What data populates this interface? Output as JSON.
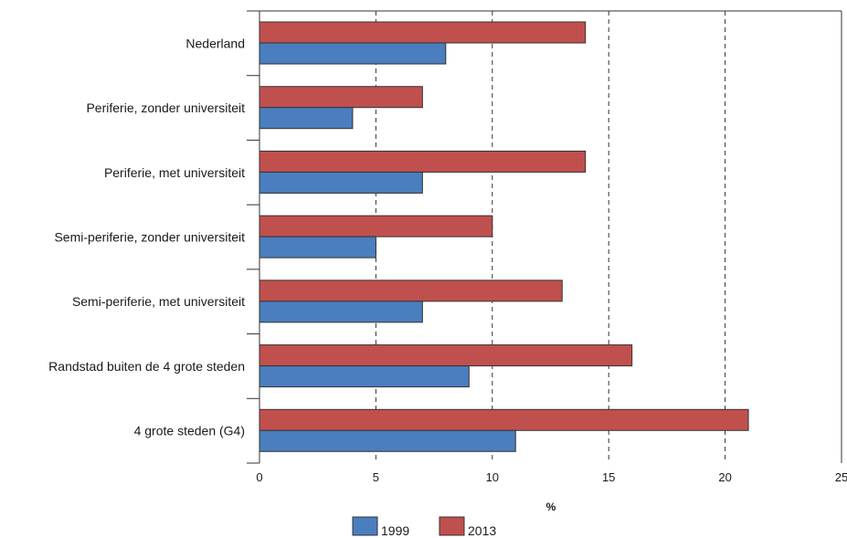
{
  "chart_data": {
    "type": "bar",
    "orientation": "horizontal",
    "categories": [
      "Nederland",
      "Periferie, zonder universiteit",
      "Periferie, met universiteit",
      "Semi-periferie, zonder universiteit",
      "Semi-periferie, met universiteit",
      "Randstad buiten de 4 grote steden",
      "4 grote steden (G4)"
    ],
    "series": [
      {
        "name": "2013",
        "color": "#c0504d",
        "values": [
          14,
          7,
          14,
          10,
          13,
          16,
          21
        ]
      },
      {
        "name": "1999",
        "color": "#4a7ebf",
        "values": [
          8,
          4,
          7,
          5,
          7,
          9,
          11
        ]
      }
    ],
    "xlabel": "%",
    "xlim": [
      0,
      25
    ],
    "xticks": [
      0,
      5,
      10,
      15,
      20,
      25
    ],
    "grid": "vertical dashed",
    "legend": {
      "placement": "bottom",
      "items": [
        {
          "label": "1999",
          "color": "#4a7ebf"
        },
        {
          "label": "2013",
          "color": "#c0504d"
        }
      ]
    }
  }
}
